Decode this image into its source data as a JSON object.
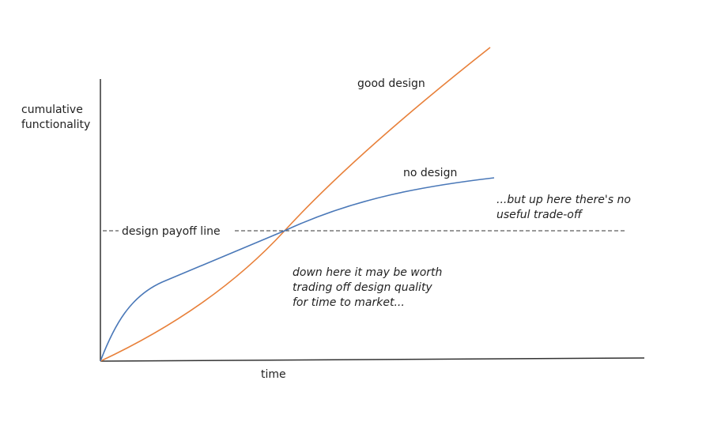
{
  "axes": {
    "y_label": [
      "cumulative",
      "functionality"
    ],
    "x_label": "time"
  },
  "curves": [
    {
      "label": "good design"
    },
    {
      "label": "no design"
    }
  ],
  "payoff_line": {
    "label": "design payoff line"
  },
  "annotations": [
    {
      "lines": [
        "down here it may be worth",
        "trading off design quality",
        "for time to market..."
      ]
    },
    {
      "lines": [
        "...but up here there's no",
        "useful trade-off"
      ]
    }
  ]
}
